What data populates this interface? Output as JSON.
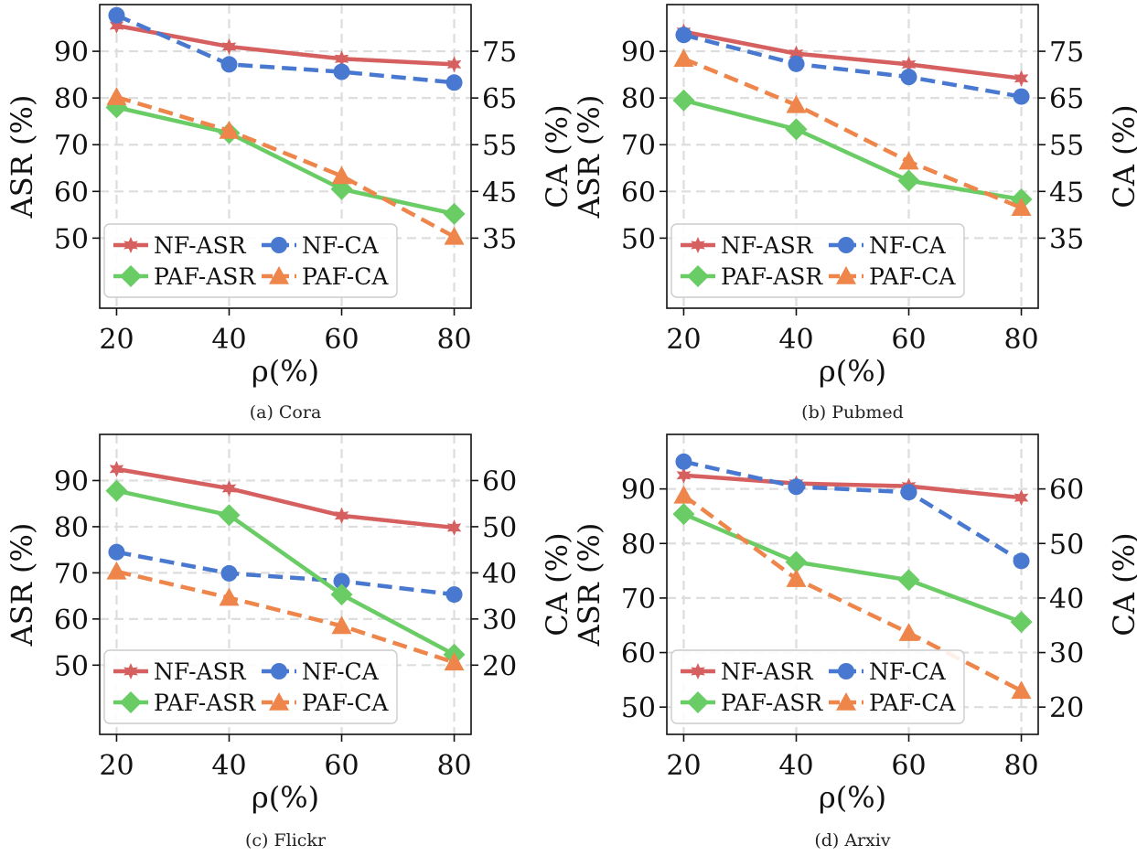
{
  "chart_data": [
    {
      "type": "line",
      "caption": "(a) Cora",
      "xlabel": "ρ(%)",
      "ylabel_left": "ASR (%)",
      "ylabel_right": "CA (%)",
      "x": [
        20,
        40,
        60,
        80
      ],
      "xticks": [
        20,
        40,
        60,
        80
      ],
      "ylim_left": [
        35,
        100
      ],
      "yticks_left": [
        50,
        60,
        70,
        80,
        90
      ],
      "ylim_right": [
        20,
        85
      ],
      "yticks_right": [
        35,
        45,
        55,
        65,
        75
      ],
      "series": [
        {
          "name": "NF-ASR",
          "axis": "left",
          "color": "#d65f5f",
          "marker": "star",
          "dashed": false,
          "values": [
            95.5,
            91.0,
            88.4,
            87.2
          ]
        },
        {
          "name": "NF-CA",
          "axis": "right",
          "color": "#4878d0",
          "marker": "circle",
          "dashed": true,
          "values": [
            82.7,
            72.2,
            70.6,
            68.3
          ]
        },
        {
          "name": "PAF-ASR",
          "axis": "left",
          "color": "#6acc64",
          "marker": "diamond",
          "dashed": false,
          "values": [
            78.0,
            72.5,
            60.5,
            55.2
          ]
        },
        {
          "name": "PAF-CA",
          "axis": "right",
          "color": "#ee854a",
          "marker": "triangle",
          "dashed": true,
          "values": [
            65.2,
            58.0,
            48.3,
            35.3
          ]
        }
      ]
    },
    {
      "type": "line",
      "caption": "(b) Pubmed",
      "xlabel": "ρ(%)",
      "ylabel_left": "ASR (%)",
      "ylabel_right": "CA (%)",
      "x": [
        20,
        40,
        60,
        80
      ],
      "xticks": [
        20,
        40,
        60,
        80
      ],
      "ylim_left": [
        35,
        100
      ],
      "yticks_left": [
        50,
        60,
        70,
        80,
        90
      ],
      "ylim_right": [
        20,
        85
      ],
      "yticks_right": [
        35,
        45,
        55,
        65,
        75
      ],
      "series": [
        {
          "name": "NF-ASR",
          "axis": "left",
          "color": "#d65f5f",
          "marker": "star",
          "dashed": false,
          "values": [
            94.2,
            89.5,
            87.2,
            84.2
          ]
        },
        {
          "name": "NF-CA",
          "axis": "right",
          "color": "#4878d0",
          "marker": "circle",
          "dashed": true,
          "values": [
            78.5,
            72.3,
            69.5,
            65.3
          ]
        },
        {
          "name": "PAF-ASR",
          "axis": "left",
          "color": "#6acc64",
          "marker": "diamond",
          "dashed": false,
          "values": [
            79.5,
            73.3,
            62.3,
            58.3
          ]
        },
        {
          "name": "PAF-CA",
          "axis": "right",
          "color": "#ee854a",
          "marker": "triangle",
          "dashed": true,
          "values": [
            73.4,
            63.5,
            51.4,
            41.5
          ]
        }
      ]
    },
    {
      "type": "line",
      "caption": "(c) Flickr",
      "xlabel": "ρ(%)",
      "ylabel_left": "ASR (%)",
      "ylabel_right": "CA (%)",
      "x": [
        20,
        40,
        60,
        80
      ],
      "xticks": [
        20,
        40,
        60,
        80
      ],
      "ylim_left": [
        35,
        100
      ],
      "yticks_left": [
        50,
        60,
        70,
        80,
        90
      ],
      "ylim_right": [
        5,
        70
      ],
      "yticks_right": [
        20,
        30,
        40,
        50,
        60
      ],
      "series": [
        {
          "name": "NF-ASR",
          "axis": "left",
          "color": "#d65f5f",
          "marker": "star",
          "dashed": false,
          "values": [
            92.5,
            88.3,
            82.4,
            79.8
          ]
        },
        {
          "name": "NF-CA",
          "axis": "right",
          "color": "#4878d0",
          "marker": "circle",
          "dashed": true,
          "values": [
            44.5,
            39.9,
            38.2,
            35.3
          ]
        },
        {
          "name": "PAF-ASR",
          "axis": "left",
          "color": "#6acc64",
          "marker": "diamond",
          "dashed": false,
          "values": [
            87.8,
            82.5,
            65.3,
            52.3
          ]
        },
        {
          "name": "PAF-CA",
          "axis": "right",
          "color": "#ee854a",
          "marker": "triangle",
          "dashed": true,
          "values": [
            40.3,
            34.6,
            28.5,
            20.6
          ]
        }
      ]
    },
    {
      "type": "line",
      "caption": "(d) Arxiv",
      "xlabel": "ρ(%)",
      "ylabel_left": "ASR (%)",
      "ylabel_right": "CA (%)",
      "x": [
        20,
        40,
        60,
        80
      ],
      "xticks": [
        20,
        40,
        60,
        80
      ],
      "ylim_left": [
        45,
        100
      ],
      "yticks_left": [
        50,
        60,
        70,
        80,
        90
      ],
      "ylim_right": [
        15,
        70
      ],
      "yticks_right": [
        20,
        30,
        40,
        50,
        60
      ],
      "series": [
        {
          "name": "NF-ASR",
          "axis": "left",
          "color": "#d65f5f",
          "marker": "star",
          "dashed": false,
          "values": [
            92.5,
            91.0,
            90.5,
            88.4
          ]
        },
        {
          "name": "NF-CA",
          "axis": "right",
          "color": "#4878d0",
          "marker": "circle",
          "dashed": true,
          "values": [
            65.0,
            60.4,
            59.4,
            46.8
          ]
        },
        {
          "name": "PAF-ASR",
          "axis": "left",
          "color": "#6acc64",
          "marker": "diamond",
          "dashed": false,
          "values": [
            85.4,
            76.6,
            73.3,
            65.6
          ]
        },
        {
          "name": "PAF-CA",
          "axis": "right",
          "color": "#ee854a",
          "marker": "triangle",
          "dashed": true,
          "values": [
            58.8,
            43.5,
            33.6,
            23.0
          ]
        }
      ]
    }
  ]
}
